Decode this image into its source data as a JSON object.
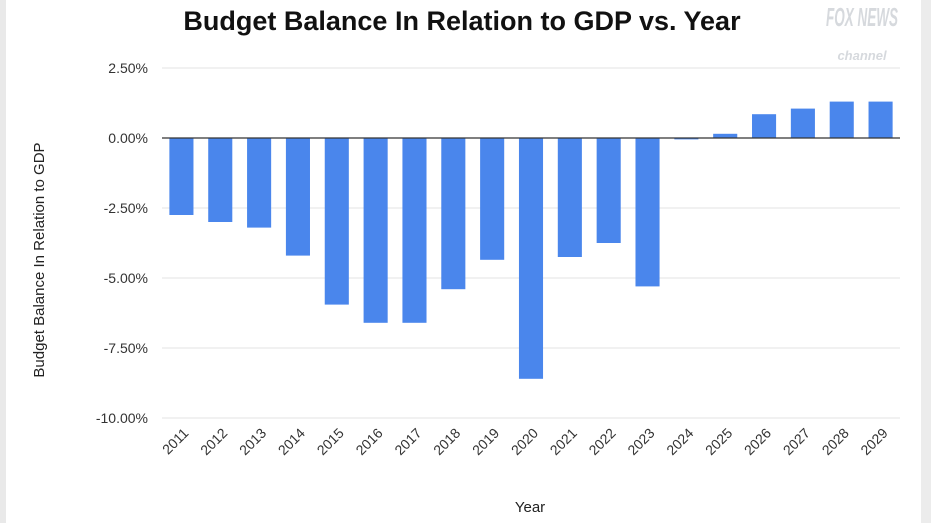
{
  "chart_data": {
    "type": "bar",
    "title": "Budget Balance In Relation to GDP vs. Year",
    "xlabel": "Year",
    "ylabel": "Budget Balance In Relation to GDP",
    "ylim": [
      -10.0,
      2.5
    ],
    "yticks": [
      2.5,
      0.0,
      -2.5,
      -5.0,
      -7.5,
      -10.0
    ],
    "ytick_labels": [
      "2.50%",
      "0.00%",
      "-2.50%",
      "-5.00%",
      "-7.50%",
      "-10.00%"
    ],
    "grid": true,
    "categories": [
      "2011",
      "2012",
      "2013",
      "2014",
      "2015",
      "2016",
      "2017",
      "2018",
      "2019",
      "2020",
      "2021",
      "2022",
      "2023",
      "2024",
      "2025",
      "2026",
      "2027",
      "2028",
      "2029"
    ],
    "values": [
      -2.75,
      -3.0,
      -3.2,
      -4.2,
      -5.95,
      -6.6,
      -6.6,
      -5.4,
      -4.35,
      -8.6,
      -4.25,
      -3.75,
      -5.3,
      -0.05,
      0.15,
      0.85,
      1.05,
      1.3,
      1.3
    ],
    "color": "#4a86ec"
  },
  "watermark": {
    "brand": "FOX NEWS",
    "sub": "channel",
    "icon": "fox-news-logo"
  }
}
